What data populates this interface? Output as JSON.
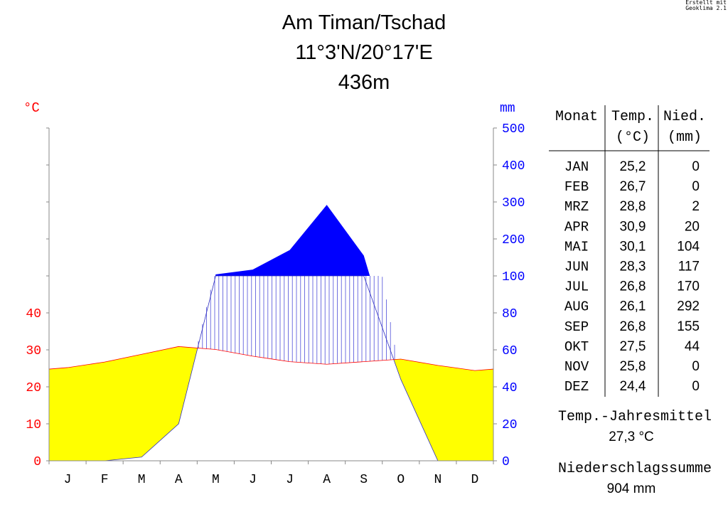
{
  "credit": {
    "line1": "Erstellt mit",
    "line2": "Geoklima 2.1"
  },
  "header": {
    "station": "Am Timan/Tschad",
    "coords": "11°3'N/20°17'E",
    "elevation": "436m"
  },
  "colors": {
    "temp": "#ff0000",
    "precip": "#0000ff",
    "arid": "#ffff00",
    "humid_hatch": "#7070e0",
    "perhumid": "#0000ff"
  },
  "chart_data": {
    "type": "climate-diagram",
    "categories": [
      "J",
      "F",
      "M",
      "A",
      "M",
      "J",
      "J",
      "A",
      "S",
      "O",
      "N",
      "D"
    ],
    "series": [
      {
        "name": "Temp.",
        "unit": "°C",
        "values": [
          25.2,
          26.7,
          28.8,
          30.9,
          30.1,
          28.3,
          26.8,
          26.1,
          26.8,
          27.5,
          25.8,
          24.4
        ]
      },
      {
        "name": "Nied.",
        "unit": "mm",
        "values": [
          0,
          0,
          2,
          20,
          104,
          117,
          170,
          292,
          155,
          44,
          0,
          0
        ]
      }
    ],
    "left_axis": {
      "label": "°C",
      "ticks": [
        0,
        10,
        20,
        30,
        40
      ]
    },
    "right_axis": {
      "label": "mm",
      "ticks": [
        0,
        20,
        40,
        60,
        80,
        100,
        200,
        300,
        400,
        500
      ]
    }
  },
  "table": {
    "headers": {
      "month": "Monat",
      "temp1": "Temp.",
      "temp2": "(°C)",
      "precip1": "Nied.",
      "precip2": "(mm)"
    },
    "months": [
      "JAN",
      "FEB",
      "MRZ",
      "APR",
      "MAI",
      "JUN",
      "JUL",
      "AUG",
      "SEP",
      "OKT",
      "NOV",
      "DEZ"
    ],
    "temps": [
      "25,2",
      "26,7",
      "28,8",
      "30,9",
      "30,1",
      "28,3",
      "26,8",
      "26,1",
      "26,8",
      "27,5",
      "25,8",
      "24,4"
    ],
    "precips": [
      "0",
      "0",
      "2",
      "20",
      "104",
      "117",
      "170",
      "292",
      "155",
      "44",
      "0",
      "0"
    ]
  },
  "summary": {
    "temp_label": "Temp.-Jahresmittel",
    "temp_value": "27,3 °C",
    "precip_label": "Niederschlagssumme",
    "precip_value": "904 mm"
  }
}
